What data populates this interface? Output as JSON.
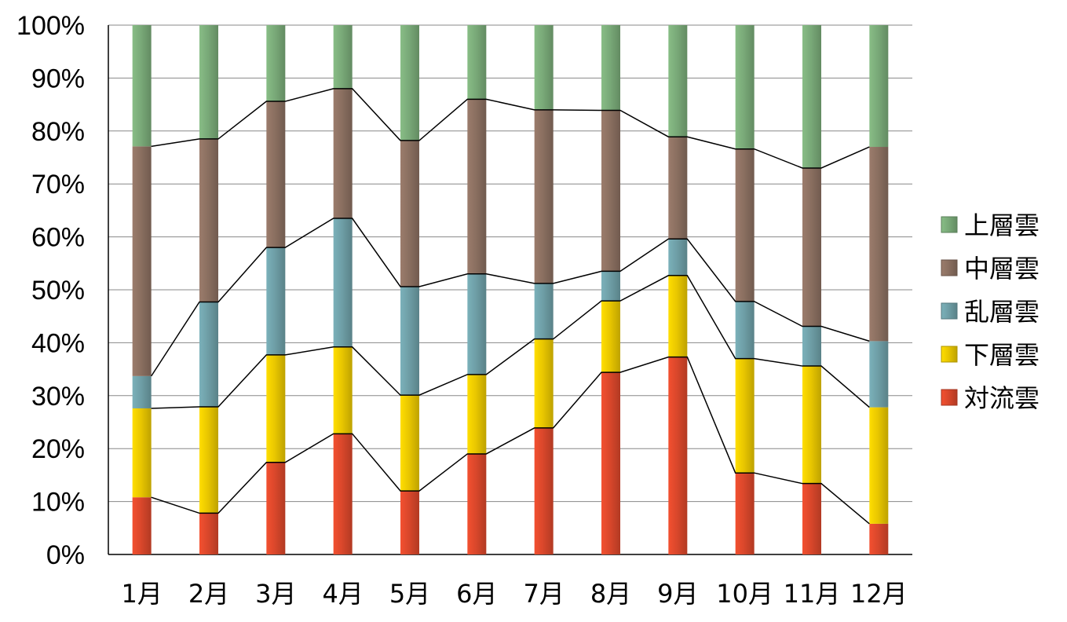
{
  "chart_data": {
    "type": "bar",
    "stacked": true,
    "normalized": true,
    "series_lines": true,
    "categories": [
      "1月",
      "2月",
      "3月",
      "4月",
      "5月",
      "6月",
      "7月",
      "8月",
      "9月",
      "10月",
      "11月",
      "12月"
    ],
    "y_ticks": [
      "0%",
      "10%",
      "20%",
      "30%",
      "40%",
      "50%",
      "60%",
      "70%",
      "80%",
      "90%",
      "100%"
    ],
    "ylim": [
      0,
      100
    ],
    "grid": true,
    "legend_position": "right",
    "series": [
      {
        "name": "対流雲",
        "color": "#d9472b",
        "values": [
          10.8,
          7.8,
          17.4,
          22.8,
          12.0,
          19.0,
          23.9,
          34.4,
          37.3,
          15.4,
          13.4,
          5.8
        ]
      },
      {
        "name": "下層雲",
        "color": "#e8c600",
        "values": [
          16.8,
          20.1,
          20.3,
          16.4,
          18.1,
          15.0,
          16.8,
          13.5,
          15.4,
          21.6,
          22.2,
          22.0
        ]
      },
      {
        "name": "乱層雲",
        "color": "#6e9ea6",
        "values": [
          6.1,
          19.8,
          20.3,
          24.3,
          20.5,
          19.0,
          10.5,
          5.6,
          6.9,
          10.8,
          7.5,
          12.5
        ]
      },
      {
        "name": "中層雲",
        "color": "#8a6f60",
        "values": [
          43.4,
          30.8,
          27.6,
          24.5,
          27.6,
          33.0,
          32.8,
          30.4,
          19.3,
          28.8,
          29.9,
          36.7
        ]
      },
      {
        "name": "上層雲",
        "color": "#79a978",
        "values": [
          22.9,
          21.5,
          14.4,
          12.0,
          21.8,
          14.0,
          16.0,
          16.1,
          21.1,
          23.4,
          27.0,
          23.0
        ]
      }
    ],
    "legend_order": [
      "上層雲",
      "中層雲",
      "乱層雲",
      "下層雲",
      "対流雲"
    ]
  }
}
